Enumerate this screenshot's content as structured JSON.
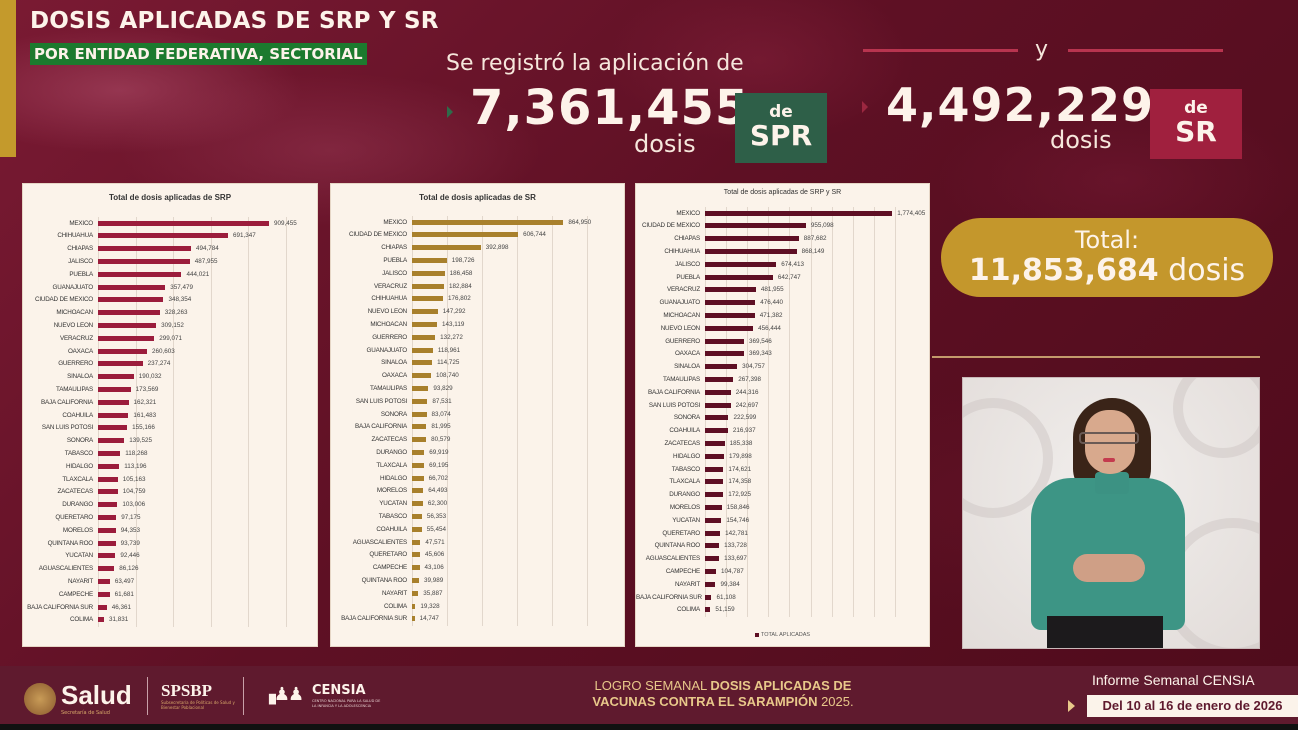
{
  "header": {
    "title": "DOSIS APLICADAS DE SRP Y SR",
    "subtitle": "POR ENTIDAD FEDERATIVA, SECTORIAL",
    "lead": "Se registró la aplicación de",
    "srp_total": "7,361,455",
    "srp_unit": "dosis",
    "srp_badge_de": "de",
    "srp_badge_code": "SPR",
    "connector": "y",
    "sr_total": "4,492,229",
    "sr_unit": "dosis",
    "sr_badge_de": "de",
    "sr_badge_code": "SR",
    "total_label": "Total:",
    "total_value": "11,853,684",
    "total_unit": "dosis"
  },
  "colors": {
    "background": "#5a0f20",
    "gold": "#c49a2c",
    "green_badge": "#2e5f48",
    "red_badge": "#a0203e",
    "srp_bar": "#9b1d3c",
    "sr_bar": "#a8802c",
    "total_bar": "#5e0f24",
    "subtitle_bg": "#1c7a2e"
  },
  "footer": {
    "salud": "Salud",
    "salud_sub": "Secretaría de Salud",
    "spsbp": "SPSBP",
    "spsbp_sub": "Subsecretaría de Políticas de Salud y Bienestar Poblacional",
    "censia": "CENSIA",
    "censia_sub": "CENTRO NACIONAL PARA LA SALUD DE LA INFANCIA Y LA ADOLESCENCIA",
    "logro_prefix": "LOGRO SEMANAL ",
    "logro_bold": "DOSIS APLICADAS DE VACUNAS CONTRA EL SARAMPIÓN",
    "logro_suffix": " 2025.",
    "informe": "Informe Semanal CENSIA",
    "date_range": "Del 10 al 16 de enero de 2026"
  },
  "chart_data": [
    {
      "type": "bar",
      "orientation": "horizontal",
      "title": "Total de dosis aplicadas de SRP",
      "color": "#9b1d3c",
      "categories": [
        "MEXICO",
        "CHIHUAHUA",
        "CHIAPAS",
        "JALISCO",
        "PUEBLA",
        "GUANAJUATO",
        "CIUDAD DE MEXICO",
        "MICHOACAN",
        "NUEVO LEON",
        "VERACRUZ",
        "OAXACA",
        "GUERRERO",
        "SINALOA",
        "TAMAULIPAS",
        "BAJA CALIFORNIA",
        "COAHUILA",
        "SAN LUIS POTOSI",
        "SONORA",
        "TABASCO",
        "HIDALGO",
        "TLAXCALA",
        "ZACATECAS",
        "DURANGO",
        "QUERETARO",
        "MORELOS",
        "QUINTANA ROO",
        "YUCATAN",
        "AGUASCALIENTES",
        "NAYARIT",
        "CAMPECHE",
        "BAJA CALIFORNIA SUR",
        "COLIMA"
      ],
      "values": [
        909455,
        691347,
        494784,
        487955,
        444021,
        357479,
        348354,
        328263,
        309152,
        299071,
        260603,
        237274,
        190032,
        173569,
        162321,
        161483,
        155166,
        139525,
        118268,
        113196,
        105163,
        104759,
        103006,
        97175,
        94353,
        93739,
        92446,
        86126,
        63497,
        61681,
        46361,
        31831
      ],
      "labels": [
        "909,455",
        "691,347",
        "494,784",
        "487,955",
        "444,021",
        "357,479",
        "348,354",
        "328,263",
        "309,152",
        "299,071",
        "260,603",
        "237,274",
        "190,032",
        "173,569",
        "162,321",
        "161,483",
        "155,166",
        "139,525",
        "118,268",
        "113,196",
        "105,163",
        "104,759",
        "103,006",
        "97,175",
        "94,353",
        "93,739",
        "92,446",
        "86,126",
        "63,497",
        "61,681",
        "46,361",
        "31,831"
      ],
      "xlim": [
        0,
        1000000
      ],
      "grid": true
    },
    {
      "type": "bar",
      "orientation": "horizontal",
      "title": "Total de dosis aplicadas de SR",
      "color": "#a8802c",
      "categories": [
        "MEXICO",
        "CIUDAD DE MEXICO",
        "CHIAPAS",
        "PUEBLA",
        "JALISCO",
        "VERACRUZ",
        "CHIHUAHUA",
        "NUEVO LEON",
        "MICHOACAN",
        "GUERRERO",
        "GUANAJUATO",
        "SINALOA",
        "OAXACA",
        "TAMAULIPAS",
        "SAN LUIS POTOSI",
        "SONORA",
        "BAJA CALIFORNIA",
        "ZACATECAS",
        "DURANGO",
        "TLAXCALA",
        "HIDALGO",
        "MORELOS",
        "YUCATAN",
        "TABASCO",
        "COAHUILA",
        "AGUASCALIENTES",
        "QUERETARO",
        "CAMPECHE",
        "QUINTANA ROO",
        "NAYARIT",
        "COLIMA",
        "BAJA CALIFORNIA SUR"
      ],
      "values": [
        864950,
        606744,
        392898,
        198726,
        186458,
        182884,
        176802,
        147292,
        143119,
        132272,
        118961,
        114725,
        108740,
        93829,
        87531,
        83074,
        81995,
        80579,
        69919,
        69195,
        66702,
        64493,
        62300,
        56353,
        55454,
        47571,
        45606,
        43106,
        39989,
        35887,
        19328,
        14747
      ],
      "labels": [
        "864,950",
        "606,744",
        "392,898",
        "198,726",
        "186,458",
        "182,884",
        "176,802",
        "147,292",
        "143,119",
        "132,272",
        "118,961",
        "114,725",
        "108,740",
        "93,829",
        "87,531",
        "83,074",
        "81,995",
        "80,579",
        "69,919",
        "69,195",
        "66,702",
        "64,493",
        "62,300",
        "56,353",
        "55,454",
        "47,571",
        "45,606",
        "43,106",
        "39,989",
        "35,887",
        "19,328",
        "14,747"
      ],
      "xlim": [
        0,
        1000000
      ],
      "grid": true
    },
    {
      "type": "bar",
      "orientation": "horizontal",
      "title": "Total de dosis aplicadas de SRP y SR",
      "color": "#5e0f24",
      "legend": [
        "TOTAL APLICADAS"
      ],
      "legend_position": "bottom",
      "categories": [
        "MEXICO",
        "CIUDAD DE MEXICO",
        "CHIAPAS",
        "CHIHUAHUA",
        "JALISCO",
        "PUEBLA",
        "VERACRUZ",
        "GUANAJUATO",
        "MICHOACAN",
        "NUEVO LEON",
        "GUERRERO",
        "OAXACA",
        "SINALOA",
        "TAMAULIPAS",
        "BAJA CALIFORNIA",
        "SAN LUIS POTOSI",
        "SONORA",
        "COAHUILA",
        "ZACATECAS",
        "HIDALGO",
        "TABASCO",
        "TLAXCALA",
        "DURANGO",
        "MORELOS",
        "YUCATAN",
        "QUERETARO",
        "QUINTANA ROO",
        "AGUASCALIENTES",
        "CAMPECHE",
        "NAYARIT",
        "BAJA CALIFORNIA SUR",
        "COLIMA"
      ],
      "values": [
        1774405,
        955098,
        887682,
        868149,
        674413,
        642747,
        481955,
        476440,
        471382,
        456444,
        369546,
        369343,
        304757,
        267398,
        244316,
        242697,
        222599,
        216937,
        185338,
        179898,
        174621,
        174358,
        172925,
        158846,
        154746,
        142781,
        133728,
        133697,
        104787,
        99384,
        61108,
        51159
      ],
      "labels": [
        "1,774,405",
        "955,098",
        "887,682",
        "868,149",
        "674,413",
        "642,747",
        "481,955",
        "476,440",
        "471,382",
        "456,444",
        "369,546",
        "369,343",
        "304,757",
        "267,398",
        "244,316",
        "242,697",
        "222,599",
        "216,937",
        "185,338",
        "179,898",
        "174,621",
        "174,358",
        "172,925",
        "158,846",
        "154,746",
        "142,781",
        "133,728",
        "133,697",
        "104,787",
        "99,384",
        "61,108",
        "51,159"
      ],
      "xlim": [
        0,
        1800000
      ],
      "grid": true
    }
  ]
}
